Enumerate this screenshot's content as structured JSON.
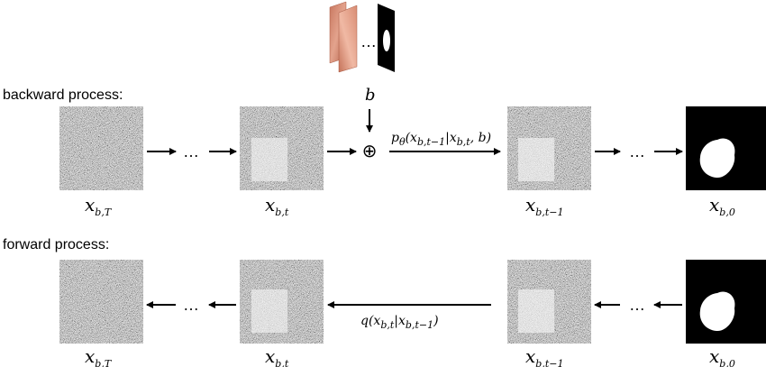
{
  "backward": {
    "title": "backward process:",
    "cond_var": "b",
    "transition": {
      "fn": "p",
      "param": "θ",
      "args": "(x",
      "s1": "b,t−1",
      "mid": "|x",
      "s2": "b,t",
      "tail": ", b)"
    }
  },
  "forward": {
    "title": "forward process:",
    "transition": {
      "fn": "q",
      "args": "(x",
      "s1": "b,t",
      "mid": "|x",
      "s2": "b,t−1",
      "tail": ")"
    }
  },
  "states": {
    "base": "x",
    "T": "b,T",
    "t": "b,t",
    "tm1": "b,t−1",
    "zero": "b,0"
  },
  "ellipsis": "…",
  "oplus": "⊕"
}
